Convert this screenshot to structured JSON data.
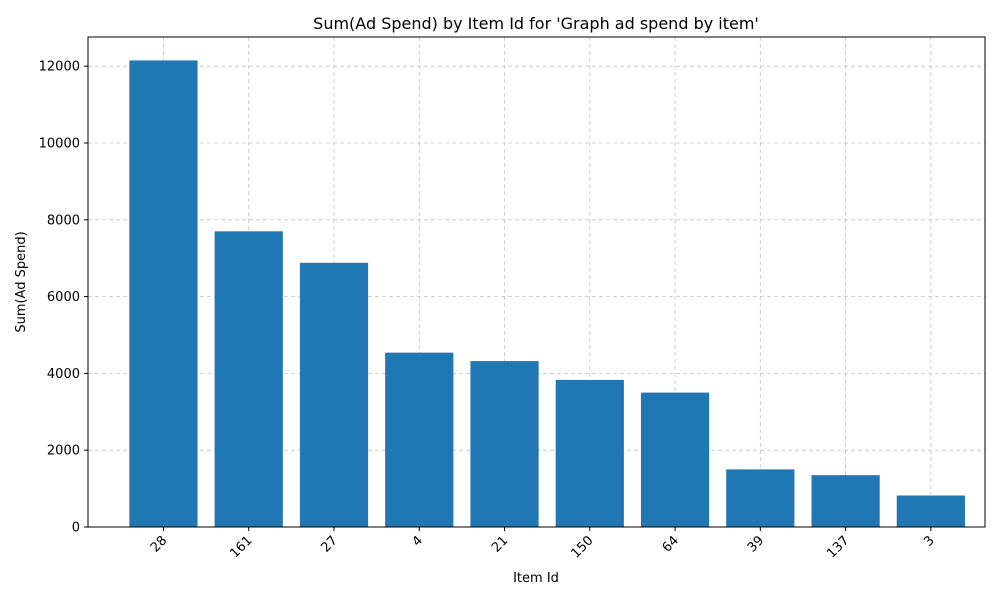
{
  "chart_data": {
    "type": "bar",
    "title": "Sum(Ad Spend) by Item Id for 'Graph ad spend by item'",
    "xlabel": "Item Id",
    "ylabel": "Sum(Ad Spend)",
    "categories": [
      "28",
      "161",
      "27",
      "4",
      "21",
      "150",
      "64",
      "39",
      "137",
      "3"
    ],
    "values": [
      12150,
      7700,
      6880,
      4540,
      4320,
      3830,
      3500,
      1500,
      1350,
      820
    ],
    "yticks": [
      0,
      2000,
      4000,
      6000,
      8000,
      10000,
      12000
    ],
    "ytick_labels": [
      "0",
      "2000",
      "4000",
      "6000",
      "8000",
      "10000",
      "12000"
    ],
    "ylim": [
      0,
      12760
    ],
    "grid": true,
    "bar_color": "#1f77b4",
    "xtick_rotation": "45 degrees"
  }
}
